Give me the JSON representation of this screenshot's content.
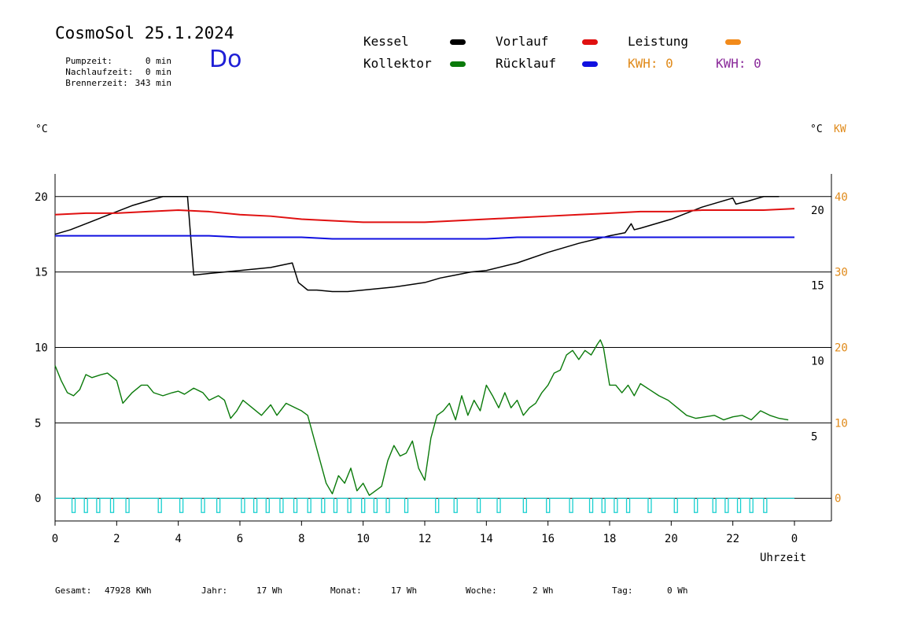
{
  "header": {
    "title": "CosmoSol 25.1.2024",
    "day": "Do",
    "stats": [
      {
        "label": "Pumpzeit:",
        "value": "0 min"
      },
      {
        "label": "Nachlaufzeit:",
        "value": "0 min"
      },
      {
        "label": "Brennerzeit:",
        "value": "343 min"
      }
    ]
  },
  "legend": [
    {
      "name": "Kessel",
      "color": "#000000"
    },
    {
      "name": "Vorlauf",
      "color": "#e01010"
    },
    {
      "name": "Leistung",
      "color": "#f28a1a"
    },
    {
      "name": "Kollektor",
      "color": "#0a7a0a"
    },
    {
      "name": "Rücklauf",
      "color": "#1010e0"
    }
  ],
  "kwh": [
    {
      "label": "KWH: 0",
      "color": "#e08a1a"
    },
    {
      "label": "KWH: 0",
      "color": "#8a2a9a"
    }
  ],
  "axes": {
    "left_unit": "°C",
    "right_unit": "°C",
    "right_unit2": "KW",
    "xlabel": "Uhrzeit"
  },
  "footer": [
    {
      "label": "Gesamt:",
      "value": "47928 KWh"
    },
    {
      "label": "Jahr:",
      "value": "17 Wh"
    },
    {
      "label": "Monat:",
      "value": "17 Wh"
    },
    {
      "label": "Woche:",
      "value": "2 Wh"
    },
    {
      "label": "Tag:",
      "value": "0 Wh"
    }
  ],
  "chart_data": {
    "type": "line",
    "x_unit": "hours",
    "xlim": [
      0,
      24
    ],
    "x_tick_labels": [
      "0",
      "2",
      "4",
      "6",
      "8",
      "10",
      "12",
      "14",
      "16",
      "18",
      "20",
      "22",
      "0"
    ],
    "left_axis": {
      "ylim": [
        -1.5,
        21.5
      ],
      "ticks": [
        "0",
        "5",
        "10",
        "15",
        "20"
      ],
      "color": "#000000"
    },
    "right_axis_temp": {
      "ticks": [
        "5",
        "10",
        "15",
        "20"
      ],
      "color": "#000000"
    },
    "right_axis_kw": {
      "ylim": [
        -3,
        43
      ],
      "ticks": [
        "0",
        "10",
        "20",
        "30",
        "40"
      ],
      "color": "#e08a1a"
    },
    "grid_y": [
      0,
      5,
      10,
      15,
      20
    ],
    "series": [
      {
        "name": "Kessel",
        "color": "#000000",
        "x": [
          0,
          0.5,
          1,
          1.5,
          2,
          2.5,
          3,
          3.5,
          4.3,
          4.5,
          5,
          6,
          7,
          7.7,
          7.9,
          8.2,
          8.5,
          9,
          9.5,
          10,
          11,
          12,
          12.5,
          13,
          13.5,
          14,
          15,
          16,
          17,
          18,
          18.5,
          18.7,
          18.8,
          19,
          19.5,
          20,
          20.5,
          21,
          21.5,
          22,
          22.1,
          22.5,
          23,
          23.5
        ],
        "y": [
          17.5,
          17.8,
          18.2,
          18.6,
          19,
          19.4,
          19.7,
          20,
          20,
          14.8,
          14.9,
          15.1,
          15.3,
          15.6,
          14.3,
          13.8,
          13.8,
          13.7,
          13.7,
          13.8,
          14,
          14.3,
          14.6,
          14.8,
          15,
          15.1,
          15.6,
          16.3,
          16.9,
          17.4,
          17.6,
          18.2,
          17.8,
          17.9,
          18.2,
          18.5,
          18.9,
          19.3,
          19.6,
          19.9,
          19.5,
          19.7,
          20,
          20
        ]
      },
      {
        "name": "Vorlauf",
        "color": "#e01010",
        "x": [
          0,
          1,
          2,
          3,
          4,
          5,
          6,
          7,
          8,
          9,
          10,
          11,
          12,
          13,
          14,
          15,
          16,
          17,
          18,
          19,
          20,
          21,
          22,
          23,
          24
        ],
        "y": [
          18.8,
          18.9,
          18.9,
          19,
          19.1,
          19,
          18.8,
          18.7,
          18.5,
          18.4,
          18.3,
          18.3,
          18.3,
          18.4,
          18.5,
          18.6,
          18.7,
          18.8,
          18.9,
          19,
          19,
          19.1,
          19.1,
          19.1,
          19.2
        ]
      },
      {
        "name": "Rücklauf",
        "color": "#1010e0",
        "x": [
          0,
          1,
          2,
          3,
          4,
          5,
          6,
          7,
          8,
          9,
          10,
          11,
          12,
          13,
          14,
          15,
          16,
          17,
          18,
          19,
          20,
          21,
          22,
          23,
          24
        ],
        "y": [
          17.4,
          17.4,
          17.4,
          17.4,
          17.4,
          17.4,
          17.3,
          17.3,
          17.3,
          17.2,
          17.2,
          17.2,
          17.2,
          17.2,
          17.2,
          17.3,
          17.3,
          17.3,
          17.3,
          17.3,
          17.3,
          17.3,
          17.3,
          17.3,
          17.3
        ]
      },
      {
        "name": "Kollektor",
        "color": "#0a7a0a",
        "x": [
          0,
          0.2,
          0.4,
          0.6,
          0.8,
          1,
          1.2,
          1.5,
          1.7,
          2,
          2.2,
          2.5,
          2.8,
          3,
          3.2,
          3.5,
          3.8,
          4,
          4.2,
          4.5,
          4.8,
          5,
          5.3,
          5.5,
          5.7,
          5.9,
          6.1,
          6.4,
          6.7,
          7,
          7.2,
          7.5,
          7.8,
          8,
          8.2,
          8.4,
          8.6,
          8.8,
          9,
          9.2,
          9.4,
          9.6,
          9.8,
          10,
          10.2,
          10.4,
          10.6,
          10.8,
          11,
          11.2,
          11.4,
          11.6,
          11.8,
          12,
          12.2,
          12.4,
          12.6,
          12.8,
          13,
          13.2,
          13.4,
          13.6,
          13.8,
          14,
          14.2,
          14.4,
          14.6,
          14.8,
          15,
          15.2,
          15.4,
          15.6,
          15.8,
          16,
          16.2,
          16.4,
          16.6,
          16.8,
          17,
          17.2,
          17.4,
          17.6,
          17.7,
          17.8,
          18,
          18.2,
          18.4,
          18.6,
          18.8,
          19,
          19.3,
          19.6,
          19.9,
          20.2,
          20.5,
          20.8,
          21.1,
          21.4,
          21.7,
          22,
          22.3,
          22.6,
          22.9,
          23.2,
          23.5,
          23.8
        ],
        "y": [
          8.8,
          7.8,
          7,
          6.8,
          7.2,
          8.2,
          8,
          8.2,
          8.3,
          7.8,
          6.3,
          7,
          7.5,
          7.5,
          7,
          6.8,
          7,
          7.1,
          6.9,
          7.3,
          7,
          6.5,
          6.8,
          6.5,
          5.3,
          5.8,
          6.5,
          6,
          5.5,
          6.2,
          5.5,
          6.3,
          6,
          5.8,
          5.5,
          4,
          2.5,
          1,
          0.3,
          1.5,
          1,
          2,
          0.5,
          1,
          0.2,
          0.5,
          0.8,
          2.5,
          3.5,
          2.8,
          3,
          3.8,
          2,
          1.2,
          4,
          5.5,
          5.8,
          6.3,
          5.2,
          6.8,
          5.5,
          6.5,
          5.8,
          7.5,
          6.8,
          6,
          7,
          6,
          6.5,
          5.5,
          6,
          6.3,
          7,
          7.5,
          8.3,
          8.5,
          9.5,
          9.8,
          9.2,
          9.8,
          9.5,
          10.2,
          10.5,
          10,
          7.5,
          7.5,
          7,
          7.5,
          6.8,
          7.6,
          7.2,
          6.8,
          6.5,
          6,
          5.5,
          5.3,
          5.4,
          5.5,
          5.2,
          5.4,
          5.5,
          5.2,
          5.8,
          5.5,
          5.3,
          5.2
        ]
      }
    ],
    "leistung_pulses": [
      0.55,
      0.95,
      1.35,
      1.8,
      2.3,
      3.35,
      4.05,
      4.75,
      5.25,
      6.05,
      6.45,
      6.85,
      7.3,
      7.75,
      8.2,
      8.65,
      9.05,
      9.5,
      9.95,
      10.35,
      10.75,
      11.35,
      12.35,
      12.95,
      13.7,
      14.35,
      15.2,
      15.95,
      16.7,
      17.35,
      17.75,
      18.15,
      18.55,
      19.25,
      20.1,
      20.75,
      21.35,
      21.75,
      22.15,
      22.55,
      23
    ]
  }
}
